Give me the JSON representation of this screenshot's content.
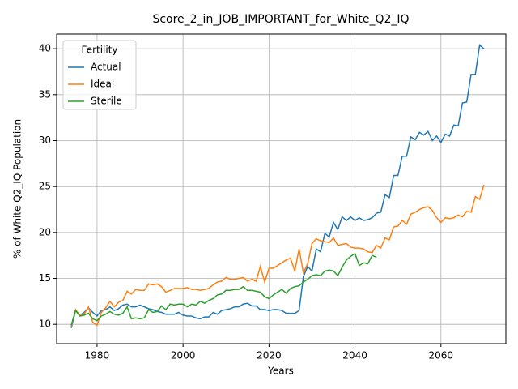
{
  "chart_data": {
    "type": "line",
    "title": "Score_2_in_JOB_IMPORTANT_for_White_Q2_IQ",
    "xlabel": "Years",
    "ylabel": "% of White Q2_IQ Population",
    "legend_title": "Fertility",
    "legend": "upper left",
    "grid": true,
    "x": [
      1974,
      1975,
      1976,
      1977,
      1978,
      1979,
      1980,
      1981,
      1982,
      1983,
      1984,
      1985,
      1986,
      1987,
      1988,
      1989,
      1990,
      1991,
      1992,
      1993,
      1994,
      1995,
      1996,
      1997,
      1998,
      1999,
      2000,
      2001,
      2002,
      2003,
      2004,
      2005,
      2006,
      2007,
      2008,
      2009,
      2010,
      2011,
      2012,
      2013,
      2014,
      2015,
      2016,
      2017,
      2018,
      2019,
      2020,
      2021,
      2022,
      2023,
      2024,
      2025,
      2026,
      2027,
      2028,
      2029,
      2030,
      2031,
      2032,
      2033,
      2034,
      2035,
      2036,
      2037,
      2038,
      2039,
      2040,
      2041,
      2042,
      2043,
      2044,
      2045,
      2046,
      2047,
      2048,
      2049,
      2050,
      2051,
      2052,
      2053,
      2054,
      2055,
      2056,
      2057,
      2058,
      2059,
      2060,
      2061,
      2062,
      2063,
      2064,
      2065,
      2066,
      2067,
      2068,
      2069,
      2070
    ],
    "series": [
      {
        "name": "Actual",
        "color": "#1f77b4",
        "values": [
          9.6,
          11.5,
          11.0,
          11.3,
          11.8,
          11.3,
          10.9,
          11.5,
          11.6,
          11.9,
          11.5,
          11.7,
          12.1,
          12.2,
          11.9,
          11.9,
          12.1,
          11.9,
          11.7,
          11.6,
          11.4,
          11.3,
          11.1,
          11.1,
          11.1,
          11.3,
          11.0,
          10.9,
          10.9,
          10.7,
          10.6,
          10.8,
          10.8,
          11.3,
          11.1,
          11.5,
          11.6,
          11.7,
          11.9,
          11.9,
          12.2,
          12.3,
          12.0,
          12.0,
          11.6,
          11.6,
          11.5,
          11.6,
          11.6,
          11.5,
          11.2,
          11.2,
          11.2,
          11.5,
          15.2,
          16.3,
          15.8,
          18.2,
          17.9,
          19.9,
          19.5,
          21.1,
          20.3,
          21.7,
          21.3,
          21.7,
          21.3,
          21.6,
          21.3,
          21.4,
          21.6,
          22.1,
          22.2,
          24.1,
          23.8,
          26.2,
          26.2,
          28.3,
          28.3,
          30.4,
          30.1,
          30.9,
          30.6,
          31.0,
          30.0,
          30.5,
          29.8,
          30.7,
          30.5,
          31.7,
          31.6,
          34.1,
          34.2,
          37.2,
          37.2,
          40.4,
          40.0
        ]
      },
      {
        "name": "Ideal",
        "color": "#ff7f0e",
        "values": [
          9.8,
          11.6,
          11.0,
          11.1,
          11.9,
          10.2,
          9.9,
          11.3,
          11.8,
          12.5,
          11.9,
          12.4,
          12.6,
          13.6,
          13.3,
          13.8,
          13.7,
          13.7,
          14.4,
          14.3,
          14.4,
          14.1,
          13.5,
          13.7,
          13.9,
          13.9,
          13.9,
          14.0,
          13.8,
          13.8,
          13.7,
          13.8,
          13.9,
          14.3,
          14.6,
          14.7,
          15.1,
          14.9,
          14.9,
          15.0,
          15.1,
          14.7,
          14.9,
          14.7,
          16.3,
          14.6,
          16.1,
          16.1,
          16.4,
          16.7,
          17.0,
          17.2,
          15.8,
          18.2,
          15.6,
          16.6,
          18.8,
          19.3,
          19.1,
          19.0,
          18.9,
          19.4,
          18.6,
          18.7,
          18.8,
          18.4,
          18.3,
          18.3,
          18.2,
          17.9,
          17.8,
          18.6,
          18.3,
          19.4,
          19.2,
          20.6,
          20.7,
          21.3,
          20.9,
          22.0,
          22.2,
          22.5,
          22.7,
          22.8,
          22.4,
          21.6,
          21.1,
          21.6,
          21.5,
          21.6,
          21.9,
          21.7,
          22.3,
          22.2,
          23.9,
          23.6,
          25.2
        ]
      },
      {
        "name": "Sterile",
        "color": "#2ca02c",
        "values": [
          9.9,
          11.5,
          10.9,
          11.0,
          11.2,
          10.6,
          10.4,
          10.9,
          11.1,
          11.4,
          11.1,
          11.0,
          11.2,
          11.9,
          10.6,
          10.7,
          10.6,
          10.7,
          11.6,
          11.3,
          11.4,
          12.0,
          11.6,
          12.2,
          12.1,
          12.2,
          12.2,
          11.9,
          12.2,
          12.1,
          12.5,
          12.3,
          12.6,
          12.8,
          13.2,
          13.3,
          13.7,
          13.7,
          13.8,
          13.8,
          14.1,
          13.7,
          13.7,
          13.6,
          13.5,
          13.0,
          12.8,
          13.2,
          13.5,
          13.8,
          13.4,
          13.9,
          14.1,
          14.2,
          14.6,
          14.9,
          15.3,
          15.4,
          15.3,
          15.8,
          15.9,
          15.8,
          15.3,
          16.2,
          17.0,
          17.4,
          17.7,
          16.4,
          16.7,
          16.6,
          17.5,
          17.3,
          null,
          null,
          null,
          null,
          null,
          null,
          null,
          null,
          null,
          null,
          null,
          null,
          null,
          null,
          null,
          null,
          null,
          null,
          null,
          null,
          null,
          null,
          null,
          null,
          null
        ]
      }
    ],
    "xlim": [
      1970.6,
      2075.1
    ],
    "xticks": [
      1980,
      2000,
      2020,
      2040,
      2060
    ],
    "ylim": [
      7.9,
      41.6
    ],
    "yticks": [
      10,
      15,
      20,
      25,
      30,
      35,
      40
    ]
  }
}
